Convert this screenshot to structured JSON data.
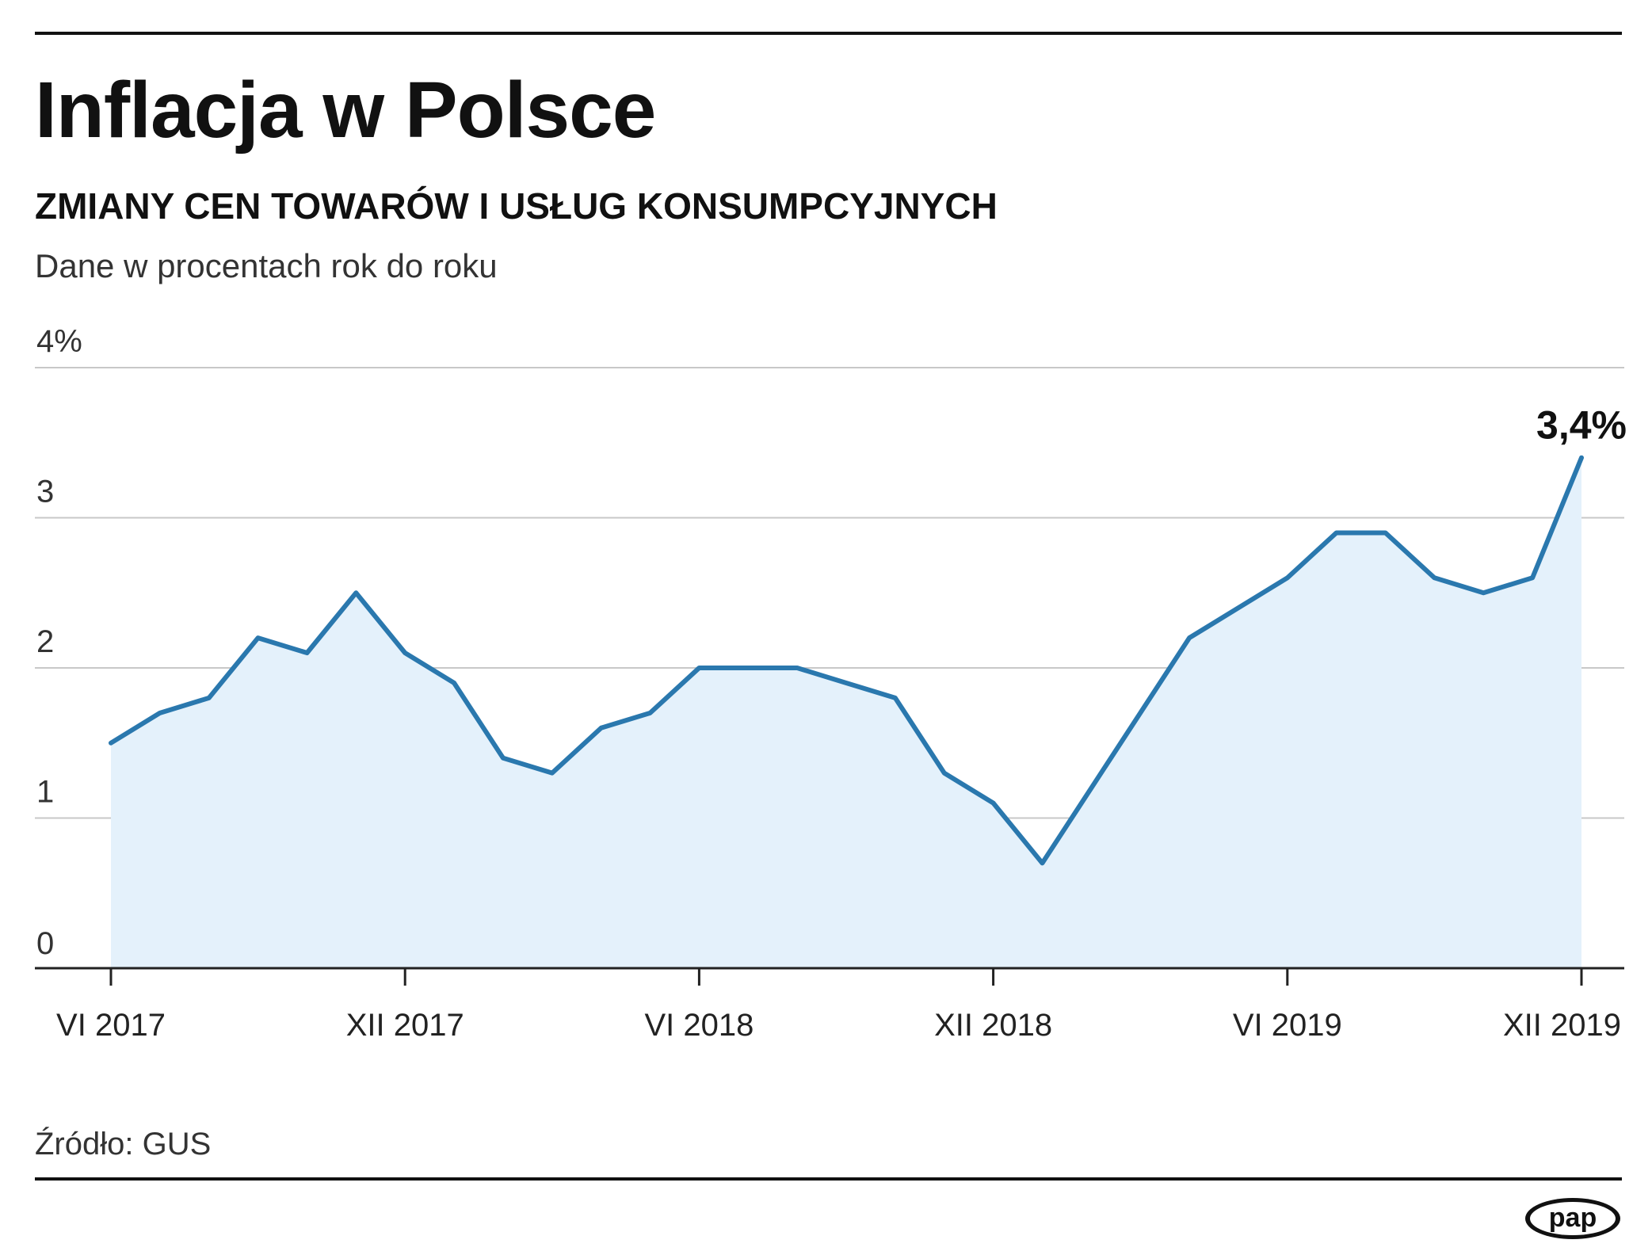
{
  "header": {
    "title": "Inflacja w Polsce",
    "subtitle": "ZMIANY CEN TOWARÓW I USŁUG KONSUMPCYJNYCH",
    "unit_note": "Dane w procentach rok do roku"
  },
  "footer": {
    "source": "Źródło: GUS",
    "logo_text": "pap"
  },
  "colors": {
    "line": "#2a78ae",
    "area": "#e4f1fb",
    "grid": "#c8c8c8",
    "text": "#111111"
  },
  "chart_data": {
    "type": "area",
    "title": "Inflacja w Polsce",
    "subtitle": "ZMIANY CEN TOWARÓW I USŁUG KONSUMPCYJNYCH",
    "ylabel": "Dane w procentach rok do roku",
    "ylim": [
      0,
      4
    ],
    "yticks": [
      "0",
      "1",
      "2",
      "3",
      "4%"
    ],
    "xticks": [
      "VI 2017",
      "XII 2017",
      "VI 2018",
      "XII 2018",
      "VI 2019",
      "XII 2019"
    ],
    "grid": true,
    "legend": "none",
    "x": [
      "2017-06",
      "2017-07",
      "2017-08",
      "2017-09",
      "2017-10",
      "2017-11",
      "2017-12",
      "2018-01",
      "2018-02",
      "2018-03",
      "2018-04",
      "2018-05",
      "2018-06",
      "2018-07",
      "2018-08",
      "2018-09",
      "2018-10",
      "2018-11",
      "2018-12",
      "2019-01",
      "2019-02",
      "2019-03",
      "2019-04",
      "2019-05",
      "2019-06",
      "2019-07",
      "2019-08",
      "2019-09",
      "2019-10",
      "2019-11",
      "2019-12"
    ],
    "series": [
      {
        "values": [
          1.5,
          1.7,
          1.8,
          2.2,
          2.1,
          2.5,
          2.1,
          1.9,
          1.4,
          1.3,
          1.6,
          1.7,
          2.0,
          2.0,
          2.0,
          1.9,
          1.8,
          1.3,
          1.1,
          0.7,
          1.2,
          1.7,
          2.2,
          2.4,
          2.6,
          2.9,
          2.9,
          2.6,
          2.5,
          2.6,
          3.4
        ]
      }
    ],
    "annotations": [
      {
        "x": "2019-12",
        "y": 3.4,
        "text": "3,4%"
      }
    ]
  }
}
